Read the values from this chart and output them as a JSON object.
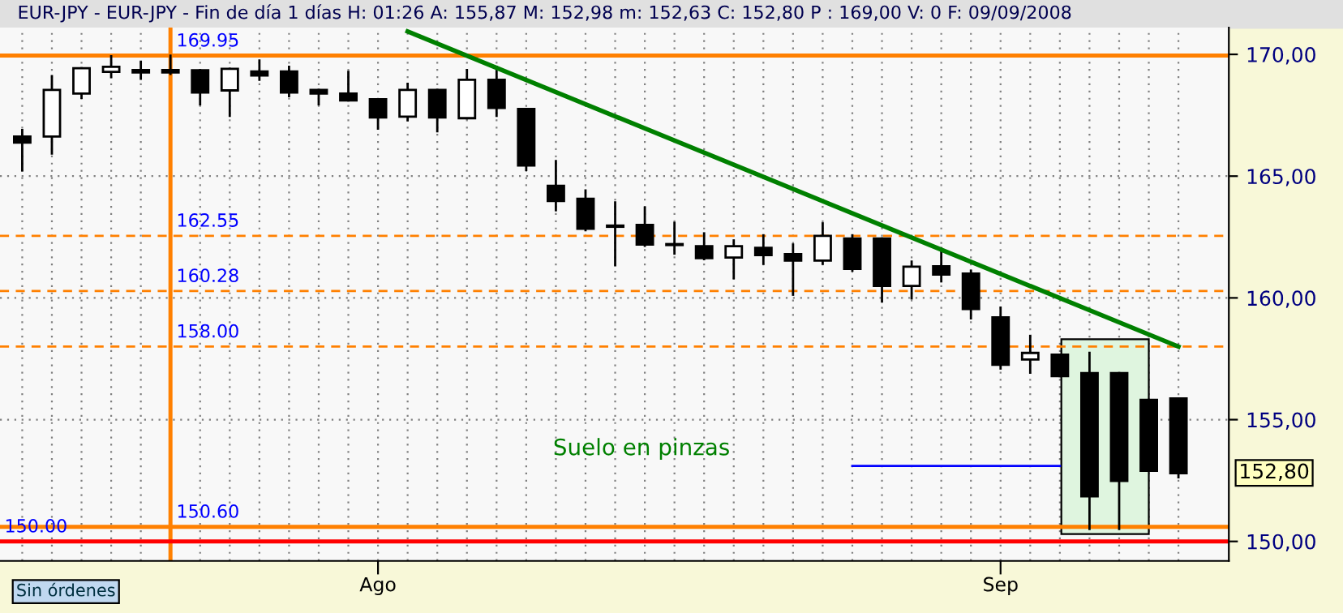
{
  "chart_data": {
    "type": "candlestick",
    "title": "EUR-JPY - EUR-JPY - Fin de día 1 días H: 01:26 A: 155,87 M: 152,98 m: 152,63 C: 152,80 P : 169,00 V: 0 F: 09/09/2008",
    "categories": [
      null,
      null,
      null,
      null,
      null,
      null,
      null,
      null,
      null,
      null,
      null,
      null,
      "Ago",
      null,
      null,
      null,
      null,
      null,
      null,
      null,
      null,
      null,
      null,
      null,
      null,
      null,
      null,
      null,
      null,
      null,
      null,
      null,
      null,
      "Sep",
      null,
      null,
      null,
      null,
      null,
      null
    ],
    "ohlc": [
      [
        166.63,
        166.89,
        165.24,
        166.38
      ],
      [
        166.63,
        169.11,
        165.93,
        168.54
      ],
      [
        168.39,
        169.43,
        168.22,
        169.43
      ],
      [
        169.28,
        169.92,
        169.07,
        169.49
      ],
      [
        169.36,
        169.7,
        169.0,
        169.26
      ],
      [
        169.36,
        169.95,
        169.2,
        169.26
      ],
      [
        169.35,
        169.35,
        167.95,
        168.43
      ],
      [
        168.52,
        169.41,
        167.48,
        169.41
      ],
      [
        169.3,
        169.75,
        168.96,
        169.13
      ],
      [
        169.3,
        169.49,
        168.28,
        168.43
      ],
      [
        168.54,
        168.54,
        167.95,
        168.39
      ],
      [
        168.39,
        169.28,
        168.11,
        168.11
      ],
      [
        168.16,
        168.16,
        166.95,
        167.41
      ],
      [
        167.44,
        168.79,
        167.29,
        168.54
      ],
      [
        168.54,
        168.54,
        166.84,
        167.41
      ],
      [
        167.38,
        169.36,
        167.38,
        168.96
      ],
      [
        168.96,
        169.49,
        167.48,
        167.8
      ],
      [
        167.76,
        167.76,
        165.25,
        165.44
      ],
      [
        164.6,
        165.62,
        163.6,
        163.98
      ],
      [
        164.07,
        164.41,
        162.78,
        162.84
      ],
      [
        162.97,
        163.92,
        161.34,
        162.92
      ],
      [
        163.0,
        163.71,
        162.14,
        162.19
      ],
      [
        162.21,
        163.08,
        161.82,
        162.17
      ],
      [
        162.12,
        162.65,
        161.59,
        161.63
      ],
      [
        161.66,
        162.36,
        160.81,
        162.12
      ],
      [
        162.06,
        162.57,
        161.4,
        161.76
      ],
      [
        161.8,
        162.19,
        160.13,
        161.53
      ],
      [
        161.53,
        163.06,
        161.4,
        162.55
      ],
      [
        162.44,
        162.57,
        161.12,
        161.19
      ],
      [
        162.44,
        162.44,
        159.85,
        160.49
      ],
      [
        160.49,
        161.49,
        159.98,
        161.28
      ],
      [
        161.3,
        162.04,
        160.68,
        160.96
      ],
      [
        161.0,
        161.12,
        159.16,
        159.54
      ],
      [
        159.2,
        159.6,
        157.1,
        157.25
      ],
      [
        157.47,
        158.44,
        156.93,
        157.74
      ],
      [
        157.67,
        157.67,
        156.79,
        156.79
      ],
      [
        156.91,
        157.74,
        150.51,
        151.85
      ],
      [
        156.91,
        156.91,
        150.51,
        152.48
      ],
      [
        155.81,
        155.81,
        152.9,
        152.9
      ],
      [
        155.87,
        155.87,
        152.63,
        152.8
      ]
    ],
    "series": [
      {
        "type": "line",
        "color": "#008000",
        "values": [
          null,
          null,
          null,
          null,
          null,
          null,
          null,
          null,
          null,
          null,
          null,
          null,
          null,
          170.94,
          null,
          null,
          null,
          null,
          null,
          null,
          null,
          null,
          null,
          null,
          null,
          null,
          null,
          null,
          null,
          null,
          null,
          null,
          null,
          null,
          null,
          null,
          null,
          null,
          null,
          158.0
        ]
      },
      {
        "type": "line",
        "color": "#0000ff",
        "values": [
          null,
          null,
          null,
          null,
          null,
          null,
          null,
          null,
          null,
          null,
          null,
          null,
          null,
          null,
          null,
          null,
          null,
          null,
          null,
          null,
          null,
          null,
          null,
          null,
          null,
          null,
          null,
          null,
          153.1,
          null,
          null,
          null,
          null,
          null,
          null,
          153.1,
          null,
          null,
          null,
          null
        ]
      }
    ],
    "ylim": [
      149.2,
      171.1
    ],
    "yticks": [
      {
        "value": 150,
        "label": "150,00"
      },
      {
        "value": 155,
        "label": "155,00"
      },
      {
        "value": 160,
        "label": "160,00"
      },
      {
        "value": 165,
        "label": "165,00"
      },
      {
        "value": 170,
        "label": "170,00"
      }
    ],
    "grid": true,
    "ref_lines": [
      {
        "axis": "y",
        "value": 169.95,
        "label": "169.95",
        "color": "#ff8000",
        "line_style": "solid"
      },
      {
        "axis": "y",
        "value": 162.55,
        "label": "162.55",
        "color": "#ff8000",
        "line_style": "dashed"
      },
      {
        "axis": "y",
        "value": 160.28,
        "label": "160.28",
        "color": "#ff8000",
        "line_style": "dashed"
      },
      {
        "axis": "y",
        "value": 158.0,
        "label": "158.00",
        "color": "#ff8000",
        "line_style": "dashed"
      },
      {
        "axis": "y",
        "value": 150.6,
        "label": "150.60",
        "color": "#ff8000",
        "line_style": "solid"
      },
      {
        "axis": "y",
        "value": 150.0,
        "label": "150.00",
        "color": "#ff0000",
        "line_style": "solid"
      }
    ],
    "annotations": [
      "Suelo en pinzas",
      "Sin órdenes",
      "152,80"
    ]
  }
}
